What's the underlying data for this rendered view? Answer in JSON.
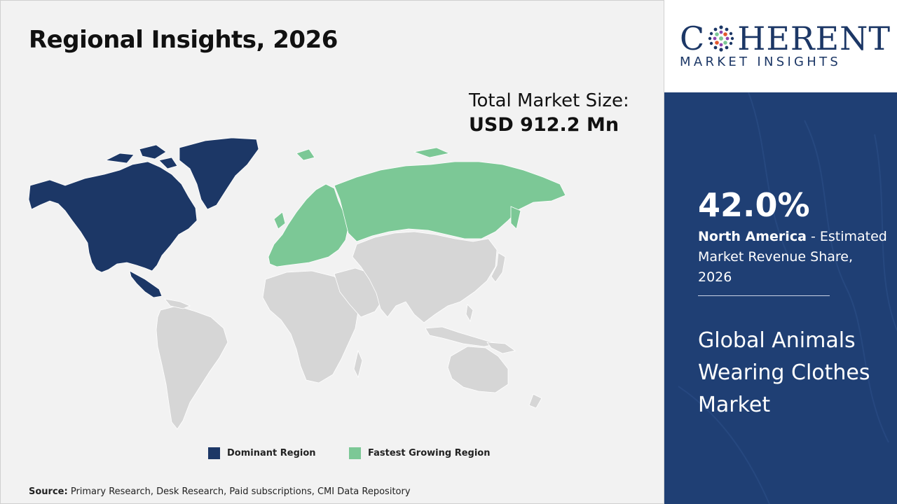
{
  "title": "Regional Insights, 2026",
  "market_size": {
    "label": "Total Market Size:",
    "value": "USD 912.2 Mn"
  },
  "map": {
    "colors": {
      "dominant": "#1c3766",
      "fastest_growing": "#7cc896",
      "other": "#d6d6d6",
      "border": "#ffffff"
    },
    "regions": [
      {
        "name": "North America",
        "status": "dominant"
      },
      {
        "name": "Europe",
        "status": "fastest_growing"
      },
      {
        "name": "Russia",
        "status": "fastest_growing"
      },
      {
        "name": "Latin America",
        "status": "other"
      },
      {
        "name": "Africa",
        "status": "other"
      },
      {
        "name": "Middle East",
        "status": "other"
      },
      {
        "name": "Asia",
        "status": "other"
      },
      {
        "name": "Oceania",
        "status": "other"
      }
    ]
  },
  "legend": [
    {
      "label": "Dominant Region",
      "color": "#1c3766"
    },
    {
      "label": "Fastest Growing Region",
      "color": "#7cc896"
    }
  ],
  "source": {
    "prefix": "Source:",
    "text": "Primary Research, Desk Research, Paid subscriptions, CMI Data Repository"
  },
  "logo": {
    "word_start": "C",
    "word_end": "HERENT",
    "subtitle": "MARKET INSIGHTS",
    "color": "#1c3766"
  },
  "highlight": {
    "share": "42.0%",
    "region": "North America",
    "description": " - Estimated Market Revenue Share, 2026",
    "market_name": "Global Animals Wearing Clothes Market",
    "panel_color": "#1f3f74"
  }
}
